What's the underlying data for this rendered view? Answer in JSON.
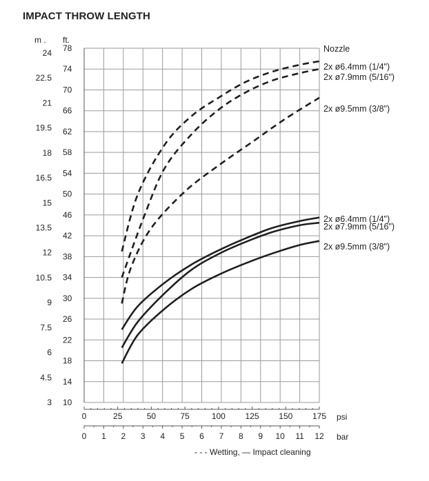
{
  "page": {
    "title": "IMPACT THROW LENGTH"
  },
  "caption": "- - - Wetting, — Impact cleaning",
  "chart_data": {
    "type": "line",
    "title": "IMPACT THROW LENGTH",
    "x_axes": {
      "psi": {
        "label": "psi",
        "ticks": [
          0,
          25,
          50,
          75,
          100,
          125,
          150,
          175
        ],
        "range": [
          0,
          175
        ]
      },
      "bar": {
        "label": "bar",
        "ticks": [
          0,
          1,
          2,
          3,
          4,
          5,
          6,
          7,
          8,
          9,
          10,
          11,
          12
        ],
        "range": [
          0,
          12
        ]
      }
    },
    "y_axes": {
      "m": {
        "label": "m .",
        "ticks": [
          "24",
          "22.5",
          "21",
          "19.5",
          "18",
          "16.5",
          "15",
          "13.5",
          "12",
          "10.5",
          "9",
          "7.5",
          "6",
          "4.5",
          "3"
        ],
        "range": [
          3,
          24
        ]
      },
      "ft": {
        "label": "ft.",
        "ticks": [
          78,
          74,
          70,
          66,
          62,
          58,
          54,
          50,
          46,
          42,
          38,
          34,
          30,
          26,
          22,
          18,
          14,
          10
        ],
        "range": [
          10,
          78
        ]
      }
    },
    "legend_title": "Nozzle",
    "grid": true,
    "series": [
      {
        "name": "2x ø6.4mm (1/4\")",
        "style": "dashed",
        "group": "Wetting",
        "x": [
          28,
          40,
          60,
          80,
          100,
          120,
          140,
          160,
          175
        ],
        "y": [
          39,
          50,
          59.5,
          65,
          68.5,
          71.5,
          73.5,
          74.8,
          75.5
        ]
      },
      {
        "name": "2x ø7.9mm (5/16\")",
        "style": "dashed",
        "group": "Wetting",
        "x": [
          28,
          45,
          60,
          80,
          100,
          120,
          140,
          160,
          175
        ],
        "y": [
          34,
          46,
          55,
          61.5,
          66.2,
          69.5,
          71.8,
          73.2,
          74
        ]
      },
      {
        "name": "2x ø9.5mm (3/8\")",
        "style": "dashed",
        "group": "Wetting",
        "x": [
          28,
          35,
          50,
          75,
          100,
          125,
          150,
          175
        ],
        "y": [
          29,
          36,
          43.5,
          50.5,
          55.5,
          60,
          64.5,
          68.5
        ]
      },
      {
        "name": "2x ø6.4mm (1/4\")",
        "style": "solid",
        "group": "Impact cleaning",
        "x": [
          28,
          40,
          60,
          80,
          100,
          120,
          140,
          160,
          175
        ],
        "y": [
          24,
          28.5,
          33,
          36.5,
          39.2,
          41.5,
          43.5,
          44.8,
          45.5
        ]
      },
      {
        "name": "2x ø7.9mm (5/16\")",
        "style": "solid",
        "group": "Impact cleaning",
        "x": [
          28,
          40,
          60,
          80,
          100,
          120,
          140,
          160,
          175
        ],
        "y": [
          20.5,
          25.5,
          31,
          35.5,
          38.5,
          40.8,
          42.7,
          44,
          44.5
        ]
      },
      {
        "name": "2x ø9.5mm (3/8\")",
        "style": "solid",
        "group": "Impact cleaning",
        "x": [
          28,
          40,
          60,
          80,
          100,
          120,
          140,
          160,
          175
        ],
        "y": [
          17.5,
          23,
          28,
          31.8,
          34.5,
          36.7,
          38.6,
          40.2,
          41
        ]
      }
    ],
    "colors": {
      "line": "#1f1f1f",
      "grid": "#9a9a9a"
    }
  }
}
